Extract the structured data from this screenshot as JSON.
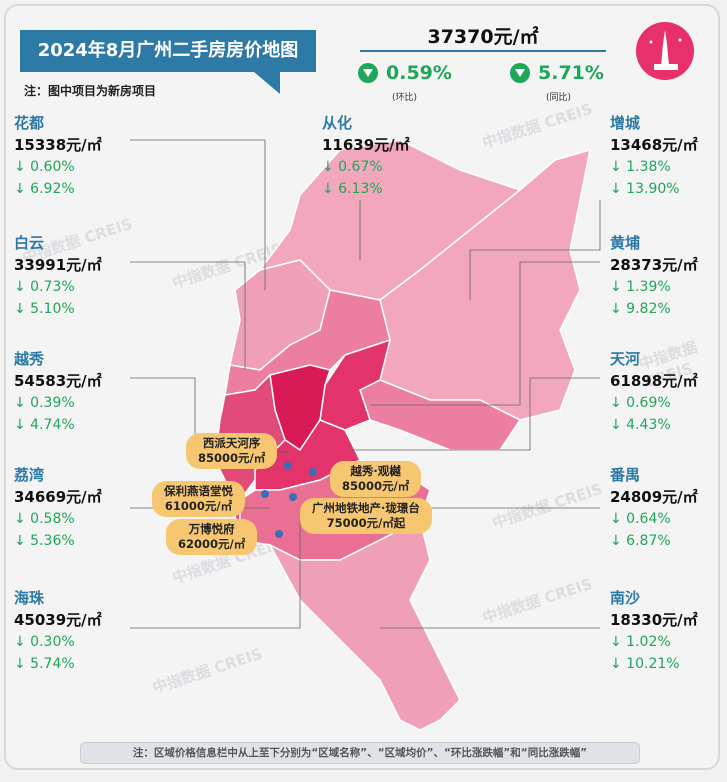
{
  "header": {
    "title": "2024年8月广州二手房房价地图",
    "note": "注：图中项目为新房项目",
    "avg_price": "37370元/㎡",
    "mom": "0.59%",
    "mom_label": "(环比)",
    "yoy": "5.71%",
    "yoy_label": "(同比)"
  },
  "districts": [
    {
      "name": "花都",
      "price": "15338元/㎡",
      "mom": "↓ 0.60%",
      "yoy": "↓ 6.92%"
    },
    {
      "name": "白云",
      "price": "33991元/㎡",
      "mom": "↓ 0.73%",
      "yoy": "↓ 5.10%"
    },
    {
      "name": "越秀",
      "price": "54583元/㎡",
      "mom": "↓ 0.39%",
      "yoy": "↓ 4.74%"
    },
    {
      "name": "荔湾",
      "price": "34669元/㎡",
      "mom": "↓ 0.58%",
      "yoy": "↓ 5.36%"
    },
    {
      "name": "海珠",
      "price": "45039元/㎡",
      "mom": "↓ 0.30%",
      "yoy": "↓ 5.74%"
    },
    {
      "name": "从化",
      "price": "11639元/㎡",
      "mom": "↓ 0.67%",
      "yoy": "↓ 6.13%"
    },
    {
      "name": "增城",
      "price": "13468元/㎡",
      "mom": "↓ 1.38%",
      "yoy": "↓ 13.90%"
    },
    {
      "name": "黄埔",
      "price": "28373元/㎡",
      "mom": "↓ 1.39%",
      "yoy": "↓ 9.82%"
    },
    {
      "name": "天河",
      "price": "61898元/㎡",
      "mom": "↓ 0.69%",
      "yoy": "↓ 4.43%"
    },
    {
      "name": "番禺",
      "price": "24809元/㎡",
      "mom": "↓ 0.64%",
      "yoy": "↓ 6.87%"
    },
    {
      "name": "南沙",
      "price": "18330元/㎡",
      "mom": "↓ 1.02%",
      "yoy": "↓ 10.21%"
    }
  ],
  "projects": [
    {
      "name": "西派天河序",
      "price": "85000元/㎡"
    },
    {
      "name": "越秀·观樾",
      "price": "85000元/㎡"
    },
    {
      "name": "保利燕语堂悦",
      "price": "61000元/㎡"
    },
    {
      "name": "广州地铁地产·珑璟台",
      "price": "75000元/㎡起"
    },
    {
      "name": "万博悦府",
      "price": "62000元/㎡"
    }
  ],
  "watermark": "中指数据 CREIS",
  "footer": "注：区域价格信息栏中从上至下分别为“区域名称”、“区域均价”、“环比涨跌幅”和“同比涨跌幅”",
  "colors": {
    "accent": "#2e7aa6",
    "down": "#1fa65a",
    "light": "#f2a7bd",
    "mid": "#ec7fa0",
    "dark": "#e2336b"
  }
}
